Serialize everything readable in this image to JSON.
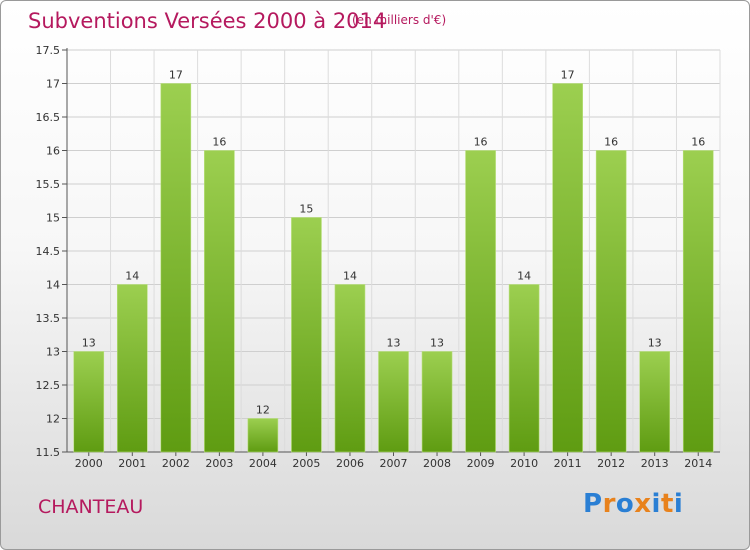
{
  "header": {
    "title": "Subventions Versées 2000 à 2014",
    "unit": "(en milliers d'€)"
  },
  "footer": {
    "commune": "CHANTEAU",
    "logo": "Proxiti",
    "logo_colors": [
      "#2a7fd4",
      "#e8821c",
      "#2a7fd4",
      "#e8821c",
      "#2a7fd4",
      "#e8821c",
      "#2a7fd4"
    ]
  },
  "chart_data": {
    "type": "bar",
    "categories": [
      "2000",
      "2001",
      "2002",
      "2003",
      "2004",
      "2005",
      "2006",
      "2007",
      "2008",
      "2009",
      "2010",
      "2011",
      "2012",
      "2013",
      "2014"
    ],
    "values": [
      13,
      14,
      17,
      16,
      12,
      15,
      14,
      13,
      13,
      16,
      14,
      17,
      16,
      13,
      16
    ],
    "data_labels": [
      "13",
      "14",
      "17",
      "16",
      "12",
      "15",
      "14",
      "13",
      "13",
      "16",
      "14",
      "17",
      "16",
      "13",
      "16"
    ],
    "ylim": [
      11.5,
      17.5
    ],
    "yticks": [
      11.5,
      12,
      12.5,
      13,
      13.5,
      14,
      14.5,
      15,
      15.5,
      16,
      16.5,
      17,
      17.5
    ],
    "ytick_labels": [
      "11.5",
      "12",
      "12.5",
      "13",
      "13.5",
      "14",
      "14.5",
      "15",
      "15.5",
      "16",
      "16.5",
      "17",
      "17.5"
    ],
    "grid": true,
    "bar_color_top": "#9ccf50",
    "bar_color_bottom": "#5f9c12"
  }
}
